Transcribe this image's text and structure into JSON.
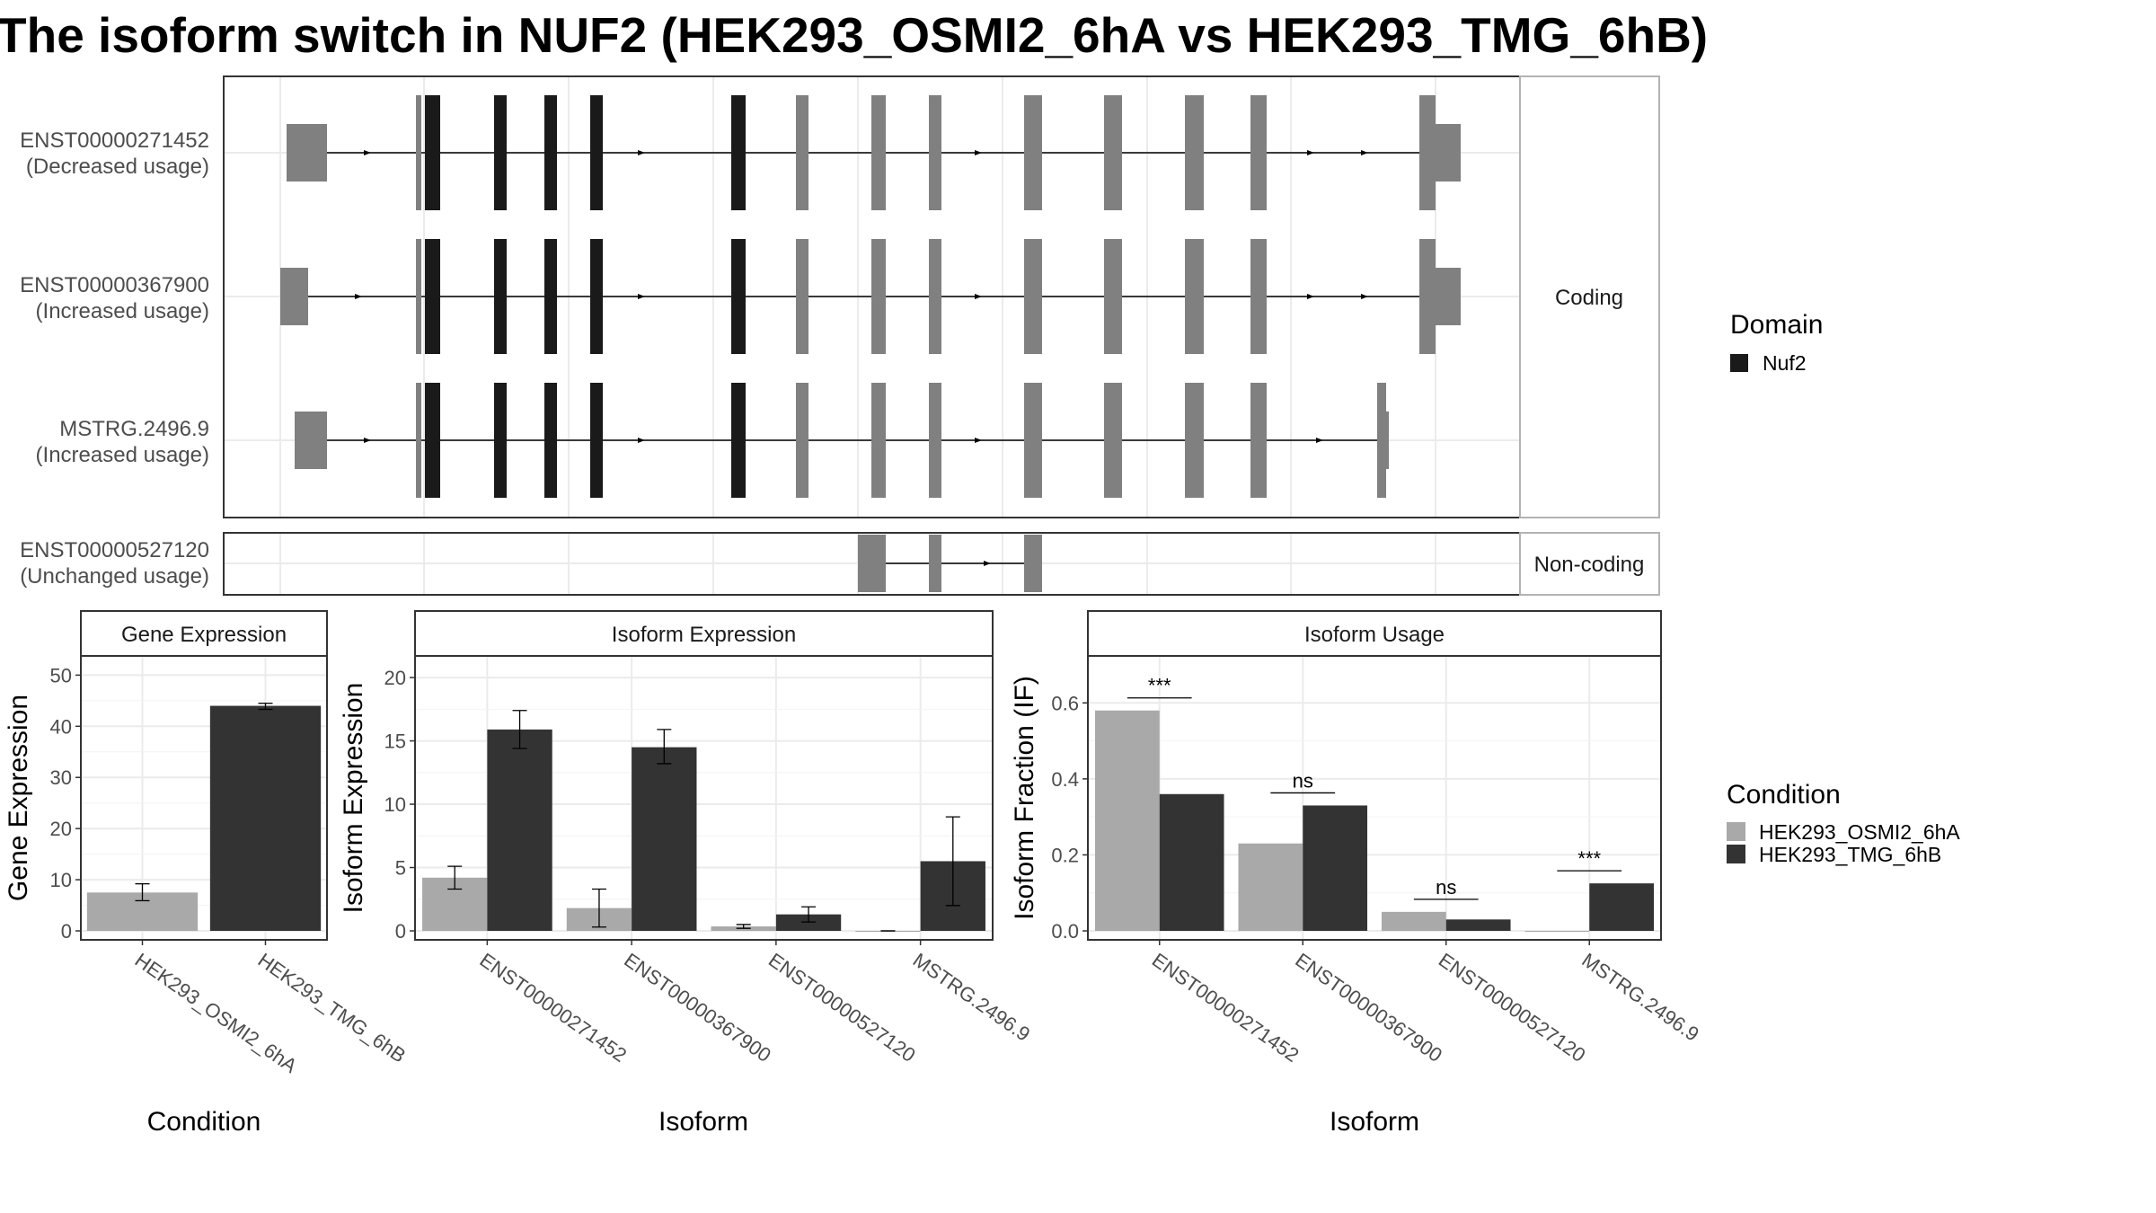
{
  "title": "The isoform switch in NUF2 (HEK293_OSMI2_6hA vs HEK293_TMG_6hB)",
  "colors": {
    "domain_nuf2": "#1a1a1a",
    "exon": "#808080",
    "condition_a": "#a9a9a9",
    "condition_b": "#333333",
    "grid": "#ebebeb",
    "panel_border": "#333333",
    "strip_border": "#b3b3b3"
  },
  "structure": {
    "strips": {
      "coding": "Coding",
      "noncoding": "Non-coding"
    },
    "isoforms": [
      {
        "id": "ENST00000271452",
        "note": "(Decreased usage)",
        "group": "coding"
      },
      {
        "id": "ENST00000367900",
        "note": "(Increased usage)",
        "group": "coding"
      },
      {
        "id": "MSTRG.2496.9",
        "note": "(Increased usage)",
        "group": "coding"
      },
      {
        "id": "ENST00000527120",
        "note": "(Unchanged usage)",
        "group": "noncoding"
      }
    ]
  },
  "legend": {
    "domain_title": "Domain",
    "domain_items": [
      "Nuf2"
    ],
    "condition_title": "Condition",
    "condition_items": [
      "HEK293_OSMI2_6hA",
      "HEK293_TMG_6hB"
    ]
  },
  "chart_data": [
    {
      "type": "bar",
      "title": "Gene Expression",
      "xlabel": "Condition",
      "ylabel": "Gene Expression",
      "ylim": [
        0,
        52
      ],
      "yticks": [
        0,
        10,
        20,
        30,
        40,
        50
      ],
      "categories": [
        "HEK293_OSMI2_6hA",
        "HEK293_TMG_6hB"
      ],
      "values": [
        7.5,
        44
      ],
      "errors_low": [
        5.9,
        43.3
      ],
      "errors_high": [
        9.2,
        44.5
      ]
    },
    {
      "type": "bar",
      "title": "Isoform Expression",
      "xlabel": "Isoform",
      "ylabel": "Isoform Expression",
      "ylim": [
        0,
        21
      ],
      "yticks": [
        0,
        5,
        10,
        15,
        20
      ],
      "categories": [
        "ENST00000271452",
        "ENST00000367900",
        "ENST00000527120",
        "MSTRG.2496.9"
      ],
      "series": [
        {
          "name": "HEK293_OSMI2_6hA",
          "values": [
            4.2,
            1.8,
            0.35,
            0.0
          ],
          "errors_low": [
            3.3,
            0.3,
            0.2,
            0.0
          ],
          "errors_high": [
            5.1,
            3.3,
            0.5,
            0.0
          ]
        },
        {
          "name": "HEK293_TMG_6hB",
          "values": [
            15.9,
            14.5,
            1.3,
            5.5
          ],
          "errors_low": [
            14.4,
            13.2,
            0.7,
            2.0
          ],
          "errors_high": [
            17.4,
            15.9,
            1.9,
            9.0
          ]
        }
      ]
    },
    {
      "type": "bar",
      "title": "Isoform Usage",
      "xlabel": "Isoform",
      "ylabel": "Isoform Fraction (IF)",
      "ylim": [
        0,
        0.7
      ],
      "yticks": [
        0.0,
        0.2,
        0.4,
        0.6
      ],
      "categories": [
        "ENST00000271452",
        "ENST00000367900",
        "ENST00000527120",
        "MSTRG.2496.9"
      ],
      "series": [
        {
          "name": "HEK293_OSMI2_6hA",
          "values": [
            0.58,
            0.23,
            0.05,
            0.0
          ]
        },
        {
          "name": "HEK293_TMG_6hB",
          "values": [
            0.36,
            0.33,
            0.03,
            0.125
          ]
        }
      ],
      "significance": [
        "***",
        "ns",
        "ns",
        "***"
      ]
    }
  ]
}
